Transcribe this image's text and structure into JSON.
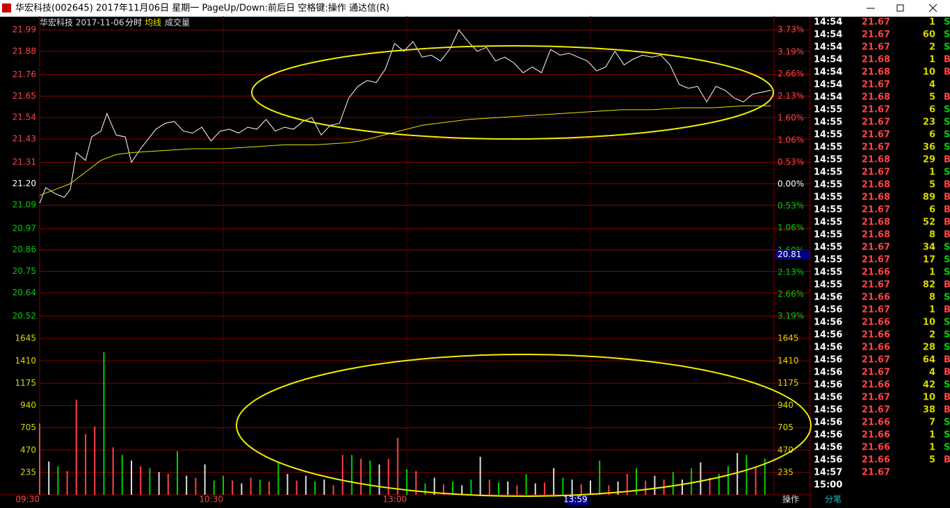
{
  "window": {
    "title": "华宏科技(002645) 2017年11月06日 星期一 PageUp/Down:前后日 空格键:操作 通达信(R)"
  },
  "theme": {
    "up_color": "#ff4444",
    "down_color": "#00d000",
    "flat_color": "#ffffff",
    "grid_color": "#8a0000",
    "volume_axis_color": "#d8d800",
    "cursor_color": "#000080"
  },
  "chart_data": [
    {
      "type": "line",
      "title": "华宏科技  2017-11-06",
      "x": [
        0,
        2,
        5,
        8,
        10,
        12,
        15,
        17,
        20,
        22,
        25,
        28,
        30,
        33,
        36,
        38,
        41,
        44,
        47,
        50,
        53,
        56,
        59,
        62,
        65,
        68,
        71,
        74,
        77,
        80,
        83,
        86,
        89,
        92,
        95,
        98,
        101,
        104,
        107,
        110,
        113,
        116,
        119,
        122,
        125,
        128,
        131,
        134,
        137,
        140,
        143,
        146,
        149,
        152,
        155,
        158,
        161,
        164,
        167,
        170,
        173,
        176,
        179,
        182,
        185,
        188,
        191,
        194,
        197,
        200,
        203,
        206,
        209,
        212,
        215,
        218,
        221,
        224,
        227,
        230,
        233,
        236,
        239
      ],
      "xlim": [
        0,
        240
      ],
      "xticks": [
        {
          "value": 0,
          "label": "09:30"
        },
        {
          "value": 60,
          "label": "10:30"
        },
        {
          "value": 120,
          "label": "13:00"
        },
        {
          "value": 180,
          "label": null
        }
      ],
      "cursor_time": {
        "value": 179,
        "label": "13:59"
      },
      "ylim": [
        20.52,
        21.99
      ],
      "yticks": [
        21.99,
        21.88,
        21.76,
        21.65,
        21.54,
        21.43,
        21.31,
        {
          "value": 21.2,
          "label": "21.20"
        },
        21.09,
        20.97,
        20.86,
        20.75,
        20.64,
        20.52
      ],
      "y2lim": [
        -3.19,
        3.73
      ],
      "y2ticks": [
        {
          "value": 3.73,
          "label": "3.73%"
        },
        {
          "value": 3.19,
          "label": "3.19%"
        },
        {
          "value": 2.66,
          "label": "2.66%"
        },
        {
          "value": 2.13,
          "label": "2.13%"
        },
        {
          "value": 1.6,
          "label": "1.60%"
        },
        {
          "value": 1.06,
          "label": "1.06%"
        },
        {
          "value": 0.53,
          "label": "0.53%"
        },
        {
          "value": 0,
          "label": "0.00%"
        },
        {
          "value": -0.53,
          "label": "0.53%"
        },
        {
          "value": -1.06,
          "label": "1.06%"
        },
        {
          "value": -1.6,
          "label": "1.60%"
        },
        {
          "value": -2.13,
          "label": "2.13%"
        },
        {
          "value": -2.66,
          "label": "2.66%"
        },
        {
          "value": -3.19,
          "label": "3.19%"
        }
      ],
      "cursor_value": 20.81,
      "grid": true,
      "series": [
        {
          "name": "分时",
          "color": "#ffffff",
          "values": [
            21.1,
            21.18,
            21.15,
            21.13,
            21.17,
            21.36,
            21.32,
            21.44,
            21.47,
            21.56,
            21.45,
            21.44,
            21.31,
            21.38,
            21.44,
            21.48,
            21.51,
            21.52,
            21.47,
            21.46,
            21.49,
            21.42,
            21.47,
            21.48,
            21.46,
            21.49,
            21.48,
            21.53,
            21.47,
            21.49,
            21.48,
            21.52,
            21.54,
            21.45,
            21.5,
            21.51,
            21.64,
            21.7,
            21.73,
            21.72,
            21.79,
            21.92,
            21.88,
            21.93,
            21.85,
            21.86,
            21.83,
            21.89,
            21.99,
            21.93,
            21.88,
            21.9,
            21.83,
            21.85,
            21.82,
            21.77,
            21.8,
            21.77,
            21.89,
            21.86,
            21.87,
            21.85,
            21.83,
            21.78,
            21.8,
            21.88,
            21.81,
            21.84,
            21.86,
            21.85,
            21.86,
            21.81,
            21.71,
            21.69,
            21.7,
            21.62,
            21.7,
            21.68,
            21.64,
            21.62,
            21.66,
            21.67,
            21.68
          ]
        },
        {
          "name": "均线",
          "color": "#e6e600",
          "x": [
            0,
            5,
            10,
            15,
            20,
            25,
            30,
            40,
            50,
            60,
            70,
            80,
            90,
            100,
            105,
            110,
            115,
            120,
            125,
            130,
            140,
            150,
            160,
            170,
            180,
            190,
            200,
            210,
            220,
            230,
            239
          ],
          "values": [
            21.14,
            21.17,
            21.2,
            21.26,
            21.32,
            21.35,
            21.36,
            21.37,
            21.38,
            21.38,
            21.39,
            21.4,
            21.4,
            21.41,
            21.42,
            21.44,
            21.46,
            21.48,
            21.5,
            21.51,
            21.53,
            21.54,
            21.55,
            21.56,
            21.57,
            21.58,
            21.58,
            21.59,
            21.59,
            21.6,
            21.6
          ]
        }
      ]
    },
    {
      "type": "bar",
      "title": "成交量",
      "x": [
        0,
        3,
        6,
        9,
        12,
        15,
        18,
        21,
        24,
        27,
        30,
        33,
        36,
        39,
        42,
        45,
        48,
        51,
        54,
        57,
        60,
        63,
        66,
        69,
        72,
        75,
        78,
        81,
        84,
        87,
        90,
        93,
        96,
        99,
        102,
        105,
        108,
        111,
        114,
        117,
        120,
        123,
        126,
        129,
        132,
        135,
        138,
        141,
        144,
        147,
        150,
        153,
        156,
        159,
        162,
        165,
        168,
        171,
        174,
        177,
        180,
        183,
        186,
        189,
        192,
        195,
        198,
        201,
        204,
        207,
        210,
        213,
        216,
        219,
        222,
        225,
        228,
        231,
        234,
        237
      ],
      "xlim": [
        0,
        240
      ],
      "values": [
        750,
        350,
        300,
        250,
        1000,
        640,
        720,
        1500,
        500,
        420,
        360,
        300,
        280,
        240,
        220,
        460,
        200,
        180,
        320,
        150,
        200,
        150,
        120,
        180,
        160,
        140,
        340,
        220,
        150,
        200,
        140,
        160,
        100,
        420,
        420,
        380,
        360,
        320,
        380,
        600,
        270,
        250,
        120,
        180,
        110,
        140,
        100,
        160,
        400,
        160,
        130,
        140,
        100,
        220,
        120,
        130,
        280,
        180,
        160,
        110,
        150,
        360,
        100,
        140,
        220,
        280,
        150,
        200,
        160,
        240,
        160,
        280,
        340,
        180,
        220,
        300,
        440,
        420,
        300,
        380
      ],
      "colors": [
        "#ff4444",
        "#e0e0e0",
        "#00d000",
        "#ff4444",
        "#ff4444",
        "#ff4444",
        "#ff4444",
        "#00d000",
        "#ff4444",
        "#00d000",
        "#e0e0e0",
        "#ff4444",
        "#00d000",
        "#e0e0e0",
        "#ff4444",
        "#00d000",
        "#e0e0e0",
        "#ff4444",
        "#e0e0e0",
        "#00d000",
        "#00d000",
        "#ff4444",
        "#e0e0e0",
        "#ff4444",
        "#00d000",
        "#ff4444",
        "#00d000",
        "#e0e0e0",
        "#ff4444",
        "#e0e0e0",
        "#00d000",
        "#e0e0e0",
        "#ff4444",
        "#ff4444",
        "#00d000",
        "#ff4444",
        "#00d000",
        "#e0e0e0",
        "#ff4444",
        "#ff4444",
        "#00d000",
        "#ff4444",
        "#00d000",
        "#e0e0e0",
        "#ff4444",
        "#00d000",
        "#e0e0e0",
        "#00d000",
        "#e0e0e0",
        "#ff4444",
        "#00d000",
        "#e0e0e0",
        "#ff4444",
        "#00d000",
        "#e0e0e0",
        "#ff4444",
        "#e0e0e0",
        "#00d000",
        "#e0e0e0",
        "#ff4444",
        "#e0e0e0",
        "#00d000",
        "#ff4444",
        "#e0e0e0",
        "#ff4444",
        "#00d000",
        "#ff4444",
        "#e0e0e0",
        "#ff4444",
        "#00d000",
        "#e0e0e0",
        "#00d000",
        "#e0e0e0",
        "#ff4444",
        "#00d000",
        "#00d000",
        "#e0e0e0",
        "#00d000",
        "#ff4444",
        "#00d000"
      ],
      "ylim": [
        0,
        1880
      ],
      "yticks": [
        235,
        470,
        705,
        940,
        1175,
        1410,
        1645
      ]
    }
  ],
  "trades": {
    "rows": [
      [
        "14:54",
        21.67,
        1,
        "S"
      ],
      [
        "14:54",
        21.67,
        60,
        "S"
      ],
      [
        "14:54",
        21.67,
        2,
        "S"
      ],
      [
        "14:54",
        21.68,
        1,
        "B"
      ],
      [
        "14:54",
        21.68,
        10,
        "B"
      ],
      [
        "14:54",
        21.67,
        4
      ],
      [
        "14:54",
        21.68,
        5,
        "B"
      ],
      [
        "14:55",
        21.67,
        6,
        "S"
      ],
      [
        "14:55",
        21.67,
        23,
        "S"
      ],
      [
        "14:55",
        21.67,
        6,
        "S"
      ],
      [
        "14:55",
        21.67,
        36,
        "S"
      ],
      [
        "14:55",
        21.68,
        29,
        "B"
      ],
      [
        "14:55",
        21.67,
        1,
        "S"
      ],
      [
        "14:55",
        21.68,
        5,
        "B"
      ],
      [
        "14:55",
        21.68,
        89,
        "B"
      ],
      [
        "14:55",
        21.67,
        6,
        "B"
      ],
      [
        "14:55",
        21.68,
        52,
        "B"
      ],
      [
        "14:55",
        21.68,
        8,
        "B"
      ],
      [
        "14:55",
        21.67,
        34,
        "S"
      ],
      [
        "14:55",
        21.67,
        17,
        "S"
      ],
      [
        "14:55",
        21.66,
        1,
        "S"
      ],
      [
        "14:55",
        21.67,
        82,
        "B"
      ],
      [
        "14:56",
        21.66,
        8,
        "S"
      ],
      [
        "14:56",
        21.67,
        1,
        "B"
      ],
      [
        "14:56",
        21.66,
        10,
        "S"
      ],
      [
        "14:56",
        21.66,
        2,
        "S"
      ],
      [
        "14:56",
        21.66,
        28,
        "S"
      ],
      [
        "14:56",
        21.67,
        64,
        "B"
      ],
      [
        "14:56",
        21.67,
        4,
        "B"
      ],
      [
        "14:56",
        21.66,
        42,
        "S"
      ],
      [
        "14:56",
        21.67,
        10,
        "B"
      ],
      [
        "14:56",
        21.67,
        38,
        "B"
      ],
      [
        "14:56",
        21.66,
        7,
        "S"
      ],
      [
        "14:56",
        21.66,
        1,
        "S"
      ],
      [
        "14:56",
        21.66,
        1,
        "S"
      ],
      [
        "14:56",
        21.66,
        5,
        "B"
      ],
      [
        "14:57",
        21.67
      ],
      [
        "15:00"
      ]
    ]
  },
  "bottom_bar": {
    "left": "操作",
    "tabs": [
      "分笔"
    ]
  }
}
